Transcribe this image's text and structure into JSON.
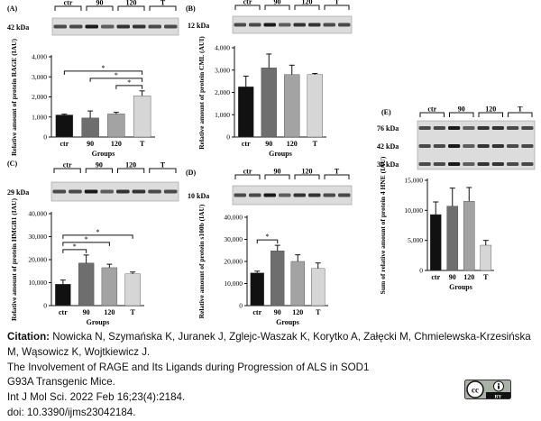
{
  "panels": {
    "A": {
      "letter": "(A)",
      "groups": [
        "ctr",
        "90",
        "120",
        "T"
      ],
      "bands": [
        "42 kDa"
      ]
    },
    "B": {
      "letter": "(B)",
      "groups": [
        "ctr",
        "90",
        "120",
        "T"
      ],
      "bands": [
        "12 kDa"
      ]
    },
    "C": {
      "letter": "(C)",
      "groups": [
        "ctr",
        "90",
        "120",
        "T"
      ],
      "bands": [
        "29 kDa"
      ]
    },
    "D": {
      "letter": "(D)",
      "groups": [
        "ctr",
        "90",
        "120",
        "T"
      ],
      "bands": [
        "10 kDa"
      ]
    },
    "E": {
      "letter": "(E)",
      "groups": [
        "ctr",
        "90",
        "120",
        "T"
      ],
      "bands": [
        "76 kDa",
        "42 kDa",
        "30 kDa"
      ]
    }
  },
  "chart_data": [
    {
      "id": "A",
      "type": "bar",
      "categories": [
        "ctr",
        "90",
        "120",
        "T"
      ],
      "values": [
        1100,
        950,
        1150,
        2050
      ],
      "errors": [
        40,
        350,
        80,
        250
      ],
      "ylabel": "Relative amount of protein RAGE (IAU)",
      "xlabel": "Groups",
      "ylim": [
        0,
        4000
      ],
      "yticks": [
        "0",
        "1,000",
        "2,000",
        "3,000",
        "4,000"
      ],
      "colors": [
        "#111111",
        "#6e6e6e",
        "#a3a3a3",
        "#d6d6d6"
      ],
      "significance": [
        {
          "pair": [
            0,
            3
          ],
          "label": "*"
        },
        {
          "pair": [
            1,
            3
          ],
          "label": "*"
        },
        {
          "pair": [
            2,
            3
          ],
          "label": "*"
        }
      ]
    },
    {
      "id": "B",
      "type": "bar",
      "categories": [
        "ctr",
        "90",
        "120",
        "T"
      ],
      "values": [
        2250,
        3100,
        2800,
        2800
      ],
      "errors": [
        480,
        620,
        420,
        50
      ],
      "ylabel": "Relative amount of protein CML (AUI)",
      "xlabel": "Groups",
      "ylim": [
        0,
        4000
      ],
      "yticks": [
        "0",
        "1,000",
        "2,000",
        "3,000",
        "4,000"
      ],
      "colors": [
        "#111111",
        "#6e6e6e",
        "#a3a3a3",
        "#d6d6d6"
      ],
      "significance": []
    },
    {
      "id": "C",
      "type": "bar",
      "categories": [
        "ctr",
        "90",
        "120",
        "T"
      ],
      "values": [
        9300,
        18500,
        16500,
        13800
      ],
      "errors": [
        1800,
        3500,
        1500,
        800
      ],
      "ylabel": "Relative amount of protein HMGB1 (IAU)",
      "xlabel": "Groups",
      "ylim": [
        0,
        40000
      ],
      "yticks": [
        "0",
        "10,000",
        "20,000",
        "30,000",
        "40,000"
      ],
      "colors": [
        "#111111",
        "#6e6e6e",
        "#a3a3a3",
        "#d6d6d6"
      ],
      "significance": [
        {
          "pair": [
            0,
            3
          ],
          "label": "*"
        },
        {
          "pair": [
            0,
            2
          ],
          "label": "*"
        },
        {
          "pair": [
            0,
            1
          ],
          "label": "*"
        }
      ]
    },
    {
      "id": "D",
      "type": "bar",
      "categories": [
        "ctr",
        "90",
        "120",
        "T"
      ],
      "values": [
        14800,
        24800,
        20000,
        16800
      ],
      "errors": [
        800,
        2500,
        3000,
        2500
      ],
      "ylabel": "Relative amount of protein s100b (IAU)",
      "xlabel": "Groups",
      "ylim": [
        0,
        40000
      ],
      "yticks": [
        "0",
        "10,000",
        "20,000",
        "30,000",
        "40,000"
      ],
      "colors": [
        "#111111",
        "#6e6e6e",
        "#a3a3a3",
        "#d6d6d6"
      ],
      "significance": [
        {
          "pair": [
            0,
            1
          ],
          "label": "*"
        }
      ]
    },
    {
      "id": "E",
      "type": "bar",
      "categories": [
        "ctr",
        "90",
        "120",
        "T"
      ],
      "values": [
        9300,
        10700,
        11500,
        4200
      ],
      "errors": [
        2100,
        3000,
        2300,
        800
      ],
      "ylabel": "Sum of relative amount of protein 4 HNE (IAU)",
      "xlabel": "Groups",
      "ylim": [
        0,
        15000
      ],
      "yticks": [
        "0",
        "5,000",
        "10,000",
        "15,000"
      ],
      "colors": [
        "#111111",
        "#6e6e6e",
        "#a3a3a3",
        "#d6d6d6"
      ],
      "significance": []
    }
  ],
  "citation": {
    "label": "Citation:",
    "authors": " Nowicka N, Szymańska K, Juranek J, Zglejc-Waszak K, Korytko A, Załęcki M, Chmielewska-Krzesińska M, Wąsowicz K, Wojtkiewicz J.",
    "title": "The Involvement of RAGE and Its Ligands during Progression of ALS in SOD1 G93A Transgenic Mice.",
    "journal": "Int J Mol Sci. 2022 Feb 16;23(4):2184.",
    "doi": "doi: 10.3390/ijms23042184."
  },
  "license": {
    "text": "BY"
  }
}
